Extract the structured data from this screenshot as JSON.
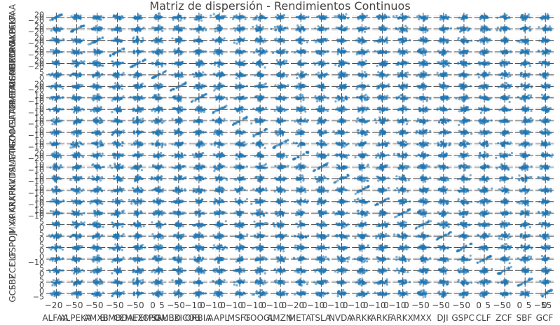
{
  "chart_data": {
    "type": "scatter",
    "subtype": "scatter-matrix",
    "title": "Matriz de dispersión - Rendimientos Continuos",
    "variables": [
      "ALFAA",
      "ALPEKA",
      "AMXB",
      "BIMBOA",
      "CEMEXCPO",
      "FEMSAUBD",
      "GMEXICOB",
      "ORBIA",
      "AAPL",
      "MSFT",
      "GOOGL",
      "AMZN",
      "META",
      "TSLA",
      "NVDA",
      "ARKK",
      "ARKF",
      "ARKX",
      "MXX",
      "DJI",
      "GSPC",
      "CLF",
      "ZCF",
      "SBF",
      "GCF"
    ],
    "x_axis_labels": [
      "ALFAA",
      "ALPEKA",
      "AMXB",
      "BIMBOA",
      "CEMEXCPO",
      "FEMSAUBD",
      "GMEXICOB",
      "ORBIA",
      "AAPL",
      "MSFT",
      "GOOGL",
      "AMZN",
      "META",
      "TSLA",
      "NVDA",
      "ARKK",
      "ARKF",
      "ARKX",
      "MXX",
      "DJI",
      "GSPC",
      "CLF",
      "ZCF",
      "SBF",
      "GCF"
    ],
    "x_tick_labels": [
      [
        "−2",
        "0"
      ],
      [
        "−5",
        "0"
      ],
      [
        "−5",
        "0"
      ],
      [
        "−5",
        "0"
      ],
      [
        "−5",
        "0"
      ],
      [
        "0",
        "5"
      ],
      [
        "−5",
        "0"
      ],
      [
        "−10",
        "0"
      ],
      [
        "−10",
        "0"
      ],
      [
        "−10",
        "0"
      ],
      [
        "−10",
        "0"
      ],
      [
        "−10",
        "0"
      ],
      [
        "−20",
        "0"
      ],
      [
        "−10",
        "0"
      ],
      [
        "−10",
        "0"
      ],
      [
        "−10",
        "0"
      ],
      [
        "−10",
        "0"
      ],
      [
        "−10",
        "0"
      ],
      [
        "−5",
        "0"
      ],
      [
        "−5",
        "0"
      ],
      [
        "−5",
        "0"
      ],
      [
        "0",
        "5"
      ],
      [
        "−5",
        "0"
      ],
      [
        "0",
        "5"
      ],
      [
        "−5",
        "0",
        "5"
      ]
    ],
    "y_tick_labels": [
      [
        "20",
        "0",
        "−20"
      ],
      [
        "20",
        "0",
        "−20"
      ],
      [
        "20",
        "0",
        "−20"
      ],
      [
        "20",
        "0",
        "−20"
      ],
      [
        "20",
        "0",
        "−20"
      ],
      [
        "5",
        "0"
      ],
      [
        "20",
        "0",
        "−20"
      ],
      [
        "10",
        "0",
        "−10"
      ],
      [
        "10",
        "0",
        "−10"
      ],
      [
        "10",
        "0",
        "−10"
      ],
      [
        "10",
        "0",
        "−10"
      ],
      [
        "10",
        "0",
        "−10"
      ],
      [
        "20",
        "0",
        "−20"
      ],
      [
        "10",
        "0",
        "−10"
      ],
      [
        "10",
        "0",
        "−10"
      ],
      [
        "10",
        "0",
        "−10"
      ],
      [
        "10",
        "0",
        "−10"
      ],
      [
        "10",
        "0",
        "−10"
      ],
      [
        "5",
        "0"
      ],
      [
        "5",
        "0"
      ],
      [
        "5",
        "0"
      ],
      [
        "0",
        "−10"
      ],
      [
        "5",
        "0"
      ],
      [
        "5",
        "0"
      ],
      [
        "0",
        "−5"
      ]
    ],
    "marker_color": "#1f77b4",
    "marker_opacity": 0.6,
    "grid": true,
    "legend": "none",
    "points_per_panel": "many (daily continuous returns); drawn as dense clouds centered at 0"
  }
}
